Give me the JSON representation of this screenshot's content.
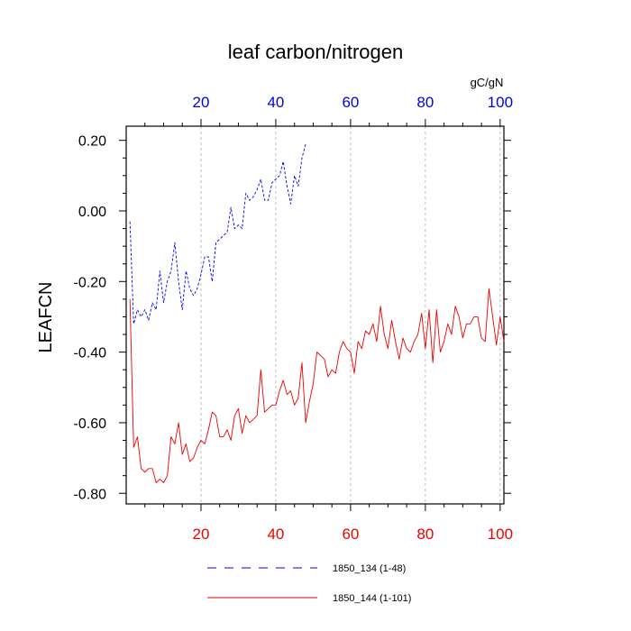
{
  "chart_data": {
    "type": "line",
    "title": "leaf carbon/nitrogen",
    "ylabel": "LEAFCN",
    "units": "gC/gN",
    "ylim": [
      -0.83,
      0.24
    ],
    "yticks": [
      0.2,
      0.0,
      -0.2,
      -0.4,
      -0.6,
      -0.8
    ],
    "ytick_labels": [
      "0.20",
      "0.00",
      "-0.20",
      "-0.40",
      "-0.60",
      "-0.80"
    ],
    "xlim": [
      0,
      101
    ],
    "top_axis": {
      "xlim": [
        0,
        101
      ],
      "ticks": [
        20,
        40,
        60,
        80,
        100
      ],
      "tick_labels": [
        "20",
        "40",
        "60",
        "80",
        "100"
      ],
      "color": "#0000ee"
    },
    "bottom_axis": {
      "xlim": [
        0,
        101
      ],
      "ticks": [
        20,
        40,
        60,
        80,
        100
      ],
      "tick_labels": [
        "20",
        "40",
        "60",
        "80",
        "100"
      ],
      "color": "#ee0000"
    },
    "grid": "vertical dashed",
    "legend_position": "bottom",
    "series": [
      {
        "name": "1850_134 (1-48)",
        "color": "#0000ee",
        "dash": "dashed",
        "x_start": 1,
        "values": [
          -0.03,
          -0.32,
          -0.28,
          -0.3,
          -0.28,
          -0.31,
          -0.26,
          -0.28,
          -0.17,
          -0.26,
          -0.2,
          -0.17,
          -0.09,
          -0.2,
          -0.28,
          -0.17,
          -0.22,
          -0.24,
          -0.22,
          -0.18,
          -0.13,
          -0.13,
          -0.2,
          -0.09,
          -0.08,
          -0.07,
          -0.06,
          0.01,
          -0.05,
          -0.04,
          -0.05,
          0.05,
          0.03,
          0.04,
          0.06,
          0.09,
          0.03,
          0.03,
          0.08,
          0.09,
          0.1,
          0.14,
          0.07,
          0.02,
          0.1,
          0.07,
          0.15,
          0.19
        ]
      },
      {
        "name": "1850_144 (1-101)",
        "color": "#ee0000",
        "dash": "solid",
        "x_start": 1,
        "values": [
          -0.25,
          -0.67,
          -0.64,
          -0.73,
          -0.74,
          -0.73,
          -0.73,
          -0.77,
          -0.76,
          -0.77,
          -0.75,
          -0.64,
          -0.66,
          -0.6,
          -0.69,
          -0.66,
          -0.71,
          -0.7,
          -0.67,
          -0.65,
          -0.66,
          -0.62,
          -0.57,
          -0.58,
          -0.64,
          -0.64,
          -0.62,
          -0.65,
          -0.58,
          -0.56,
          -0.63,
          -0.58,
          -0.6,
          -0.59,
          -0.58,
          -0.45,
          -0.57,
          -0.56,
          -0.55,
          -0.55,
          -0.51,
          -0.48,
          -0.52,
          -0.51,
          -0.55,
          -0.53,
          -0.43,
          -0.6,
          -0.54,
          -0.49,
          -0.4,
          -0.41,
          -0.42,
          -0.47,
          -0.45,
          -0.46,
          -0.4,
          -0.37,
          -0.39,
          -0.4,
          -0.46,
          -0.37,
          -0.39,
          -0.34,
          -0.35,
          -0.32,
          -0.37,
          -0.27,
          -0.35,
          -0.39,
          -0.31,
          -0.37,
          -0.42,
          -0.36,
          -0.39,
          -0.4,
          -0.37,
          -0.35,
          -0.29,
          -0.39,
          -0.28,
          -0.43,
          -0.28,
          -0.4,
          -0.37,
          -0.32,
          -0.35,
          -0.27,
          -0.3,
          -0.36,
          -0.32,
          -0.32,
          -0.3,
          -0.3,
          -0.36,
          -0.37,
          -0.22,
          -0.3,
          -0.38,
          -0.3,
          -0.37
        ]
      }
    ]
  }
}
